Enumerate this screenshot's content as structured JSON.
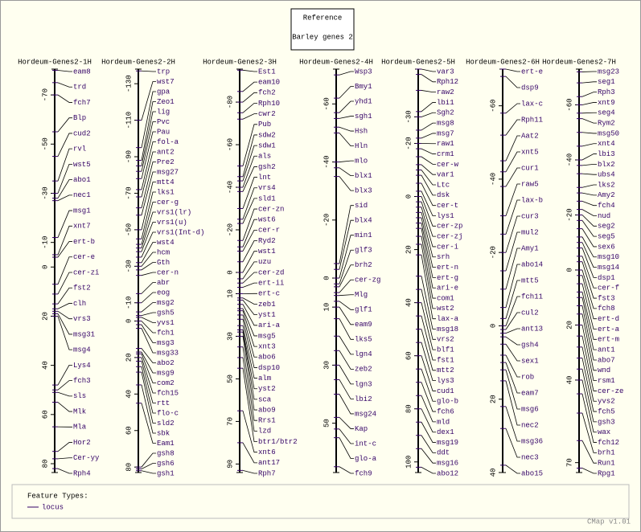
{
  "reference": {
    "title": "Reference",
    "subtitle": "Barley genes 2"
  },
  "maps": [
    {
      "title": "Hordeum-Genes2-1H",
      "ylim": [
        -80.5,
        83.6
      ],
      "ticks": [
        -70,
        -50,
        -30,
        -10,
        0,
        20,
        40,
        60,
        80
      ],
      "loci": [
        {
          "name": "eam8",
          "pos": -80
        },
        {
          "name": "trd",
          "pos": -75
        },
        {
          "name": "fch7",
          "pos": -70
        },
        {
          "name": "Blp",
          "pos": -55
        },
        {
          "name": "cud2",
          "pos": -45
        },
        {
          "name": "rvl",
          "pos": -35
        },
        {
          "name": "wst5",
          "pos": -30
        },
        {
          "name": "abo1",
          "pos": -28
        },
        {
          "name": "nec1",
          "pos": -27
        },
        {
          "name": "msg1",
          "pos": -12
        },
        {
          "name": "xnt7",
          "pos": -5
        },
        {
          "name": "ert-b",
          "pos": -4
        },
        {
          "name": "cer-e",
          "pos": 7
        },
        {
          "name": "cer-zi",
          "pos": 11
        },
        {
          "name": "fst2",
          "pos": 15
        },
        {
          "name": "clh",
          "pos": 17
        },
        {
          "name": "vrs3",
          "pos": 18
        },
        {
          "name": "msg31",
          "pos": 19
        },
        {
          "name": "msg4",
          "pos": 20
        },
        {
          "name": "Lys4",
          "pos": 48
        },
        {
          "name": "fch3",
          "pos": 50
        },
        {
          "name": "sls",
          "pos": 51
        },
        {
          "name": "Mlk",
          "pos": 55
        },
        {
          "name": "Mla",
          "pos": 65
        },
        {
          "name": "Hor2",
          "pos": 75
        },
        {
          "name": "Cer-yy",
          "pos": 78
        },
        {
          "name": "Rph4",
          "pos": 82
        }
      ]
    },
    {
      "title": "Hordeum-Genes2-2H",
      "ylim": [
        -138,
        83
      ],
      "ticks": [
        -130,
        -110,
        -90,
        -70,
        -50,
        -30,
        -10,
        0,
        20,
        40,
        60,
        80
      ],
      "loci": [
        {
          "name": "trp",
          "pos": -137
        },
        {
          "name": "wst7",
          "pos": -110
        },
        {
          "name": "gpa",
          "pos": -95
        },
        {
          "name": "Zeo1",
          "pos": -88
        },
        {
          "name": "lig",
          "pos": -85
        },
        {
          "name": "Pvc",
          "pos": -82
        },
        {
          "name": "Pau",
          "pos": -78
        },
        {
          "name": "fol-a",
          "pos": -72
        },
        {
          "name": "ant2",
          "pos": -68
        },
        {
          "name": "Pre2",
          "pos": -62
        },
        {
          "name": "msg27",
          "pos": -58
        },
        {
          "name": "mtt4",
          "pos": -50
        },
        {
          "name": "lks1",
          "pos": -45
        },
        {
          "name": "cer-g",
          "pos": -42
        },
        {
          "name": "vrs1(lr)",
          "pos": -40
        },
        {
          "name": "vrs1(u)",
          "pos": -38
        },
        {
          "name": "vrs1(Int-d)",
          "pos": -35
        },
        {
          "name": "wst4",
          "pos": -32
        },
        {
          "name": "hcm",
          "pos": -30
        },
        {
          "name": "Gth",
          "pos": -28
        },
        {
          "name": "cer-n",
          "pos": -25
        },
        {
          "name": "abr",
          "pos": -15
        },
        {
          "name": "eog",
          "pos": -10
        },
        {
          "name": "msg2",
          "pos": -5
        },
        {
          "name": "gsh5",
          "pos": -3
        },
        {
          "name": "yvs1",
          "pos": -2
        },
        {
          "name": "fch1",
          "pos": 0
        },
        {
          "name": "msg3",
          "pos": 2
        },
        {
          "name": "msg33",
          "pos": 4
        },
        {
          "name": "abo2",
          "pos": 15
        },
        {
          "name": "msg9",
          "pos": 17
        },
        {
          "name": "com2",
          "pos": 18
        },
        {
          "name": "fch15",
          "pos": 20
        },
        {
          "name": "rtt",
          "pos": 22
        },
        {
          "name": "flo-c",
          "pos": 25
        },
        {
          "name": "sld2",
          "pos": 28
        },
        {
          "name": "sbk",
          "pos": 35
        },
        {
          "name": "Eam1",
          "pos": 45
        },
        {
          "name": "gsh8",
          "pos": 80
        },
        {
          "name": "gsh6",
          "pos": 81
        },
        {
          "name": "gsh1",
          "pos": 82
        }
      ]
    },
    {
      "title": "Hordeum-Genes2-3H",
      "ylim": [
        -95.5,
        94
      ],
      "ticks": [
        -80,
        -60,
        -40,
        -20,
        0,
        10,
        30,
        50,
        70,
        90
      ],
      "loci": [
        {
          "name": "Est1",
          "pos": -95
        },
        {
          "name": "eam10",
          "pos": -85
        },
        {
          "name": "fch2",
          "pos": -80
        },
        {
          "name": "Rph10",
          "pos": -75
        },
        {
          "name": "cwr2",
          "pos": -72
        },
        {
          "name": "Pub",
          "pos": -50
        },
        {
          "name": "sdw2",
          "pos": -45
        },
        {
          "name": "sdw1",
          "pos": -43
        },
        {
          "name": "als",
          "pos": -40
        },
        {
          "name": "gsh2",
          "pos": -38
        },
        {
          "name": "lnt",
          "pos": -30
        },
        {
          "name": "vrs4",
          "pos": -25
        },
        {
          "name": "sld1",
          "pos": -23
        },
        {
          "name": "cer-zn",
          "pos": -15
        },
        {
          "name": "wst6",
          "pos": -12
        },
        {
          "name": "cer-r",
          "pos": -10
        },
        {
          "name": "Ryd2",
          "pos": -5
        },
        {
          "name": "wst1",
          "pos": 0
        },
        {
          "name": "uzu",
          "pos": 3
        },
        {
          "name": "cer-zd",
          "pos": 5
        },
        {
          "name": "ert-ii",
          "pos": 7
        },
        {
          "name": "ert-c",
          "pos": 10
        },
        {
          "name": "zeb1",
          "pos": 12
        },
        {
          "name": "yst1",
          "pos": 13
        },
        {
          "name": "ari-a",
          "pos": 15
        },
        {
          "name": "msg5",
          "pos": 17
        },
        {
          "name": "xnt3",
          "pos": 18
        },
        {
          "name": "abo6",
          "pos": 20
        },
        {
          "name": "dsp10",
          "pos": 22
        },
        {
          "name": "alm",
          "pos": 25
        },
        {
          "name": "yst2",
          "pos": 27
        },
        {
          "name": "sca",
          "pos": 28
        },
        {
          "name": "abo9",
          "pos": 30
        },
        {
          "name": "Rrs1",
          "pos": 35
        },
        {
          "name": "lzd",
          "pos": 40
        },
        {
          "name": "btr1/btr2",
          "pos": 45
        },
        {
          "name": "xnt6",
          "pos": 65
        },
        {
          "name": "ant17",
          "pos": 80
        },
        {
          "name": "Rph7",
          "pos": 93
        }
      ]
    },
    {
      "title": "Hordeum-Genes2-4H",
      "ylim": [
        -72,
        67
      ],
      "ticks": [
        -60,
        -40,
        -20,
        0,
        10,
        30,
        50
      ],
      "loci": [
        {
          "name": "Wsp3",
          "pos": -70
        },
        {
          "name": "Bmy1",
          "pos": -62
        },
        {
          "name": "yhd1",
          "pos": -57
        },
        {
          "name": "sgh1",
          "pos": -55
        },
        {
          "name": "Hsh",
          "pos": -52
        },
        {
          "name": "Hln",
          "pos": -50
        },
        {
          "name": "mlo",
          "pos": -40
        },
        {
          "name": "blx1",
          "pos": -38
        },
        {
          "name": "blx3",
          "pos": -35
        },
        {
          "name": "sid",
          "pos": -5
        },
        {
          "name": "blx4",
          "pos": -3
        },
        {
          "name": "min1",
          "pos": 0
        },
        {
          "name": "glf3",
          "pos": 2
        },
        {
          "name": "brh2",
          "pos": 3
        },
        {
          "name": "cer-zg",
          "pos": 5
        },
        {
          "name": "Mlg",
          "pos": 6
        },
        {
          "name": "glf1",
          "pos": 8
        },
        {
          "name": "eam9",
          "pos": 10
        },
        {
          "name": "lks5",
          "pos": 14
        },
        {
          "name": "lgn4",
          "pos": 20
        },
        {
          "name": "zeb2",
          "pos": 25
        },
        {
          "name": "lgn3",
          "pos": 30
        },
        {
          "name": "lbi2",
          "pos": 35
        },
        {
          "name": "msg24",
          "pos": 40
        },
        {
          "name": "Kap",
          "pos": 48
        },
        {
          "name": "int-c",
          "pos": 52
        },
        {
          "name": "glo-a",
          "pos": 55
        },
        {
          "name": "fch9",
          "pos": 65
        }
      ]
    },
    {
      "title": "Hordeum-Genes2-5H",
      "ylim": [
        -48,
        104
      ],
      "ticks": [
        -30,
        -20,
        0,
        20,
        40,
        60,
        80,
        100
      ],
      "loci": [
        {
          "name": "var3",
          "pos": -48
        },
        {
          "name": "Rph12",
          "pos": -46
        },
        {
          "name": "raw2",
          "pos": -40
        },
        {
          "name": "lbi1",
          "pos": -32
        },
        {
          "name": "Sgh2",
          "pos": -30
        },
        {
          "name": "msg8",
          "pos": -25
        },
        {
          "name": "msg7",
          "pos": -22
        },
        {
          "name": "raw1",
          "pos": -20
        },
        {
          "name": "crm1",
          "pos": -18
        },
        {
          "name": "cer-w",
          "pos": -15
        },
        {
          "name": "var1",
          "pos": -12
        },
        {
          "name": "Ltc",
          "pos": -10
        },
        {
          "name": "dsk",
          "pos": -8
        },
        {
          "name": "cer-t",
          "pos": -5
        },
        {
          "name": "lys1",
          "pos": -2
        },
        {
          "name": "cer-zp",
          "pos": 0
        },
        {
          "name": "cer-zj",
          "pos": 2
        },
        {
          "name": "cer-i",
          "pos": 4
        },
        {
          "name": "srh",
          "pos": 6
        },
        {
          "name": "ert-n",
          "pos": 8
        },
        {
          "name": "ert-g",
          "pos": 10
        },
        {
          "name": "ari-e",
          "pos": 12
        },
        {
          "name": "com1",
          "pos": 15
        },
        {
          "name": "wst2",
          "pos": 18
        },
        {
          "name": "lax-a",
          "pos": 22
        },
        {
          "name": "msg18",
          "pos": 30
        },
        {
          "name": "vrs2",
          "pos": 35
        },
        {
          "name": "blf1",
          "pos": 40
        },
        {
          "name": "fst1",
          "pos": 45
        },
        {
          "name": "mtt2",
          "pos": 50
        },
        {
          "name": "lys3",
          "pos": 55
        },
        {
          "name": "cud1",
          "pos": 60
        },
        {
          "name": "glo-b",
          "pos": 65
        },
        {
          "name": "fch6",
          "pos": 70
        },
        {
          "name": "mld",
          "pos": 75
        },
        {
          "name": "dex1",
          "pos": 80
        },
        {
          "name": "msg19",
          "pos": 85
        },
        {
          "name": "ddt",
          "pos": 90
        },
        {
          "name": "msg16",
          "pos": 95
        },
        {
          "name": "abo12",
          "pos": 102
        }
      ]
    },
    {
      "title": "Hordeum-Genes2-6H",
      "ylim": [
        -70,
        40
      ],
      "ticks": [
        -60,
        -40,
        -20,
        0,
        20,
        40
      ],
      "loci": [
        {
          "name": "ert-e",
          "pos": -70
        },
        {
          "name": "dsp9",
          "pos": -68
        },
        {
          "name": "lax-c",
          "pos": -58
        },
        {
          "name": "Rph11",
          "pos": -52
        },
        {
          "name": "Aat2",
          "pos": -45
        },
        {
          "name": "xnt5",
          "pos": -42
        },
        {
          "name": "cur1",
          "pos": -38
        },
        {
          "name": "raw5",
          "pos": -30
        },
        {
          "name": "lax-b",
          "pos": -25
        },
        {
          "name": "cur3",
          "pos": -20
        },
        {
          "name": "mul2",
          "pos": -15
        },
        {
          "name": "Amy1",
          "pos": -10
        },
        {
          "name": "abo14",
          "pos": -5
        },
        {
          "name": "mtt5",
          "pos": -2
        },
        {
          "name": "fch11",
          "pos": 0
        },
        {
          "name": "cul2",
          "pos": 1
        },
        {
          "name": "ant13",
          "pos": 2
        },
        {
          "name": "gsh4",
          "pos": 3
        },
        {
          "name": "sex1",
          "pos": 5
        },
        {
          "name": "rob",
          "pos": 8
        },
        {
          "name": "eam7",
          "pos": 10
        },
        {
          "name": "msg6",
          "pos": 12
        },
        {
          "name": "nec2",
          "pos": 15
        },
        {
          "name": "msg36",
          "pos": 22
        },
        {
          "name": "nec3",
          "pos": 28
        },
        {
          "name": "abo15",
          "pos": 38
        }
      ]
    },
    {
      "title": "Hordeum-Genes2-7H",
      "ylim": [
        -73,
        73.6
      ],
      "ticks": [
        -60,
        -40,
        -20,
        0,
        20,
        40,
        70
      ],
      "loci": [
        {
          "name": "msg23",
          "pos": -72
        },
        {
          "name": "seg1",
          "pos": -68
        },
        {
          "name": "Rph3",
          "pos": -63
        },
        {
          "name": "xnt9",
          "pos": -60
        },
        {
          "name": "seg4",
          "pos": -57
        },
        {
          "name": "Rym2",
          "pos": -55
        },
        {
          "name": "msg50",
          "pos": -50
        },
        {
          "name": "xnt4",
          "pos": -45
        },
        {
          "name": "lbi3",
          "pos": -40
        },
        {
          "name": "blx2",
          "pos": -38
        },
        {
          "name": "ubs4",
          "pos": -35
        },
        {
          "name": "lks2",
          "pos": -30
        },
        {
          "name": "Amy2",
          "pos": -28
        },
        {
          "name": "fch4",
          "pos": -25
        },
        {
          "name": "nud",
          "pos": -22
        },
        {
          "name": "seg2",
          "pos": -20
        },
        {
          "name": "seg5",
          "pos": -18
        },
        {
          "name": "sex6",
          "pos": -15
        },
        {
          "name": "msg10",
          "pos": -12
        },
        {
          "name": "msg14",
          "pos": -10
        },
        {
          "name": "dsp1",
          "pos": -8
        },
        {
          "name": "cer-f",
          "pos": -5
        },
        {
          "name": "fst3",
          "pos": -3
        },
        {
          "name": "fch8",
          "pos": 0
        },
        {
          "name": "ert-d",
          "pos": 2
        },
        {
          "name": "ert-a",
          "pos": 5
        },
        {
          "name": "ert-m",
          "pos": 8
        },
        {
          "name": "ant1",
          "pos": 10
        },
        {
          "name": "abo7",
          "pos": 13
        },
        {
          "name": "wnd",
          "pos": 16
        },
        {
          "name": "rsm1",
          "pos": 20
        },
        {
          "name": "cer-ze",
          "pos": 24
        },
        {
          "name": "yvs2",
          "pos": 28
        },
        {
          "name": "fch5",
          "pos": 32
        },
        {
          "name": "gsh3",
          "pos": 36
        },
        {
          "name": "wax",
          "pos": 40
        },
        {
          "name": "fch12",
          "pos": 45
        },
        {
          "name": "brh1",
          "pos": 52
        },
        {
          "name": "Run1",
          "pos": 62
        },
        {
          "name": "Rpg1",
          "pos": 72
        }
      ]
    }
  ],
  "legend": {
    "title": "Feature Types:",
    "items": [
      "locus"
    ]
  },
  "footer": "CMap v1.01"
}
